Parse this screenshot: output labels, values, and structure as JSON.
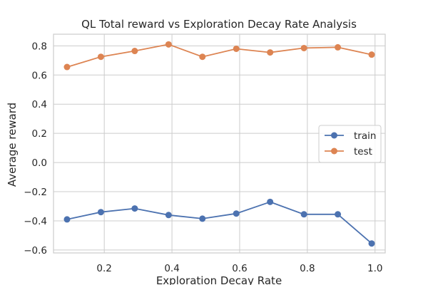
{
  "chart_data": {
    "type": "line",
    "title": "QL Total reward vs Exploration Decay Rate Analysis",
    "xlabel": "Exploration Decay Rate",
    "ylabel": "Average reward",
    "xlim": [
      0.05,
      1.03
    ],
    "ylim": [
      -0.62,
      0.88
    ],
    "x_ticks": [
      "0.2",
      "0.4",
      "0.6",
      "0.8",
      "1.0"
    ],
    "y_ticks": [
      "0.8",
      "0.6",
      "0.4",
      "0.2",
      "0.0",
      "−0.2",
      "−0.4",
      "−0.6"
    ],
    "grid": true,
    "legend_position": "right",
    "x": [
      0.09,
      0.19,
      0.29,
      0.39,
      0.49,
      0.59,
      0.69,
      0.79,
      0.89,
      0.99
    ],
    "series": [
      {
        "name": "train",
        "color": "#4c72b0",
        "values": [
          -0.39,
          -0.34,
          -0.315,
          -0.36,
          -0.385,
          -0.35,
          -0.27,
          -0.355,
          -0.355,
          -0.555
        ]
      },
      {
        "name": "test",
        "color": "#dd8452",
        "values": [
          0.655,
          0.725,
          0.765,
          0.81,
          0.725,
          0.78,
          0.755,
          0.785,
          0.79,
          0.74
        ]
      }
    ]
  }
}
